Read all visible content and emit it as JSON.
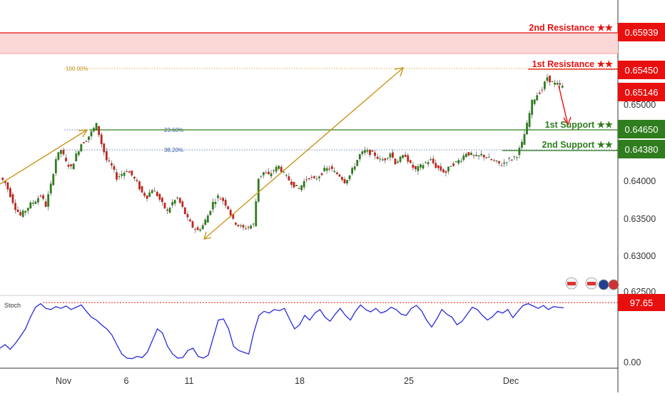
{
  "chart_data": {
    "type": "candlestick",
    "symbol_hint": "",
    "price_axis": {
      "min": 0.6245,
      "max": 0.6628,
      "ticks": [
        "0.65000",
        "0.64000",
        "0.63500",
        "0.63000",
        "0.62500"
      ]
    },
    "time_axis": {
      "labels": [
        "Nov",
        "6",
        "11",
        "18",
        "25",
        "Dec"
      ]
    },
    "levels": [
      {
        "name": "2nd Resistance ★★",
        "value": "0.65939",
        "role": "resistance",
        "color": "#e8100f"
      },
      {
        "name": "1st Resistance ★★",
        "value": "0.65450",
        "role": "resistance",
        "color": "#e8100f"
      },
      {
        "name": "1st Support ★★",
        "value": "0.64650",
        "role": "support",
        "color": "#2f7d1e"
      },
      {
        "name": "2nd Support ★★",
        "value": "0.64380",
        "role": "support",
        "color": "#2f7d1e"
      }
    ],
    "current_price": {
      "value": "0.65146",
      "color": "#e8100f"
    },
    "fibonacci": [
      {
        "label": "100.00%",
        "color": "#c8961e"
      },
      {
        "label": "23.60%",
        "color": "#3a5aa8"
      },
      {
        "label": "38.20%",
        "color": "#3a5aa8"
      }
    ],
    "price_path": [
      [
        0,
        0.6395
      ],
      [
        1,
        0.6388
      ],
      [
        2,
        0.6372
      ],
      [
        3,
        0.6355
      ],
      [
        4,
        0.6345
      ],
      [
        5,
        0.6352
      ],
      [
        6,
        0.636
      ],
      [
        7,
        0.6365
      ],
      [
        8,
        0.6372
      ],
      [
        9,
        0.6358
      ],
      [
        10,
        0.6385
      ],
      [
        11,
        0.642
      ],
      [
        12,
        0.6432
      ],
      [
        13,
        0.6415
      ],
      [
        14,
        0.6408
      ],
      [
        15,
        0.6425
      ],
      [
        16,
        0.644
      ],
      [
        17,
        0.6445
      ],
      [
        18,
        0.6455
      ],
      [
        19,
        0.6465
      ],
      [
        20,
        0.644
      ],
      [
        21,
        0.6418
      ],
      [
        22,
        0.641
      ],
      [
        23,
        0.6395
      ],
      [
        24,
        0.64
      ],
      [
        25,
        0.6405
      ],
      [
        26,
        0.6398
      ],
      [
        27,
        0.6388
      ],
      [
        28,
        0.6375
      ],
      [
        29,
        0.637
      ],
      [
        30,
        0.638
      ],
      [
        31,
        0.6372
      ],
      [
        32,
        0.636
      ],
      [
        33,
        0.635
      ],
      [
        34,
        0.6362
      ],
      [
        35,
        0.6368
      ],
      [
        36,
        0.6355
      ],
      [
        37,
        0.634
      ],
      [
        38,
        0.633
      ],
      [
        39,
        0.6325
      ],
      [
        40,
        0.6332
      ],
      [
        41,
        0.6345
      ],
      [
        42,
        0.6362
      ],
      [
        43,
        0.637
      ],
      [
        44,
        0.6365
      ],
      [
        45,
        0.6355
      ],
      [
        46,
        0.6338
      ],
      [
        47,
        0.6332
      ],
      [
        48,
        0.6328
      ],
      [
        49,
        0.633
      ],
      [
        50,
        0.6333
      ],
      [
        51,
        0.6395
      ],
      [
        52,
        0.6402
      ],
      [
        53,
        0.6398
      ],
      [
        54,
        0.6405
      ],
      [
        55,
        0.641
      ],
      [
        56,
        0.64
      ],
      [
        57,
        0.6392
      ],
      [
        58,
        0.6385
      ],
      [
        59,
        0.638
      ],
      [
        60,
        0.639
      ],
      [
        61,
        0.6396
      ],
      [
        62,
        0.6392
      ],
      [
        63,
        0.6398
      ],
      [
        64,
        0.6405
      ],
      [
        65,
        0.6408
      ],
      [
        66,
        0.6402
      ],
      [
        67,
        0.6398
      ],
      [
        68,
        0.639
      ],
      [
        69,
        0.6398
      ],
      [
        70,
        0.6412
      ],
      [
        71,
        0.6425
      ],
      [
        72,
        0.643
      ],
      [
        73,
        0.6428
      ],
      [
        74,
        0.6425
      ],
      [
        75,
        0.6418
      ],
      [
        76,
        0.642
      ],
      [
        77,
        0.6428
      ],
      [
        78,
        0.6415
      ],
      [
        79,
        0.642
      ],
      [
        80,
        0.6425
      ],
      [
        81,
        0.6412
      ],
      [
        82,
        0.6405
      ],
      [
        83,
        0.641
      ],
      [
        84,
        0.6415
      ],
      [
        85,
        0.6418
      ],
      [
        86,
        0.641
      ],
      [
        87,
        0.6405
      ],
      [
        88,
        0.6402
      ],
      [
        89,
        0.6412
      ],
      [
        90,
        0.6415
      ],
      [
        91,
        0.642
      ],
      [
        92,
        0.6428
      ],
      [
        93,
        0.6425
      ],
      [
        94,
        0.6422
      ],
      [
        95,
        0.6425
      ],
      [
        96,
        0.6422
      ],
      [
        97,
        0.6418
      ],
      [
        98,
        0.6415
      ],
      [
        99,
        0.6412
      ],
      [
        100,
        0.6418
      ],
      [
        101,
        0.642
      ],
      [
        102,
        0.6425
      ],
      [
        103,
        0.644
      ],
      [
        104,
        0.6465
      ],
      [
        105,
        0.6495
      ],
      [
        106,
        0.6505
      ],
      [
        107,
        0.6512
      ],
      [
        108,
        0.6528
      ],
      [
        109,
        0.652
      ],
      [
        110,
        0.6518
      ],
      [
        111,
        0.6515
      ]
    ],
    "stochastic": {
      "label": "Stoch",
      "marker": {
        "value": "97.65",
        "color": "#e8100f"
      },
      "ticks": [
        "0.00"
      ],
      "values": [
        22,
        28,
        20,
        30,
        42,
        55,
        75,
        92,
        98,
        90,
        88,
        93,
        90,
        94,
        88,
        92,
        96,
        85,
        75,
        70,
        62,
        55,
        45,
        28,
        12,
        5,
        4,
        8,
        6,
        15,
        35,
        55,
        48,
        25,
        12,
        5,
        6,
        18,
        22,
        8,
        5,
        10,
        40,
        70,
        72,
        55,
        25,
        18,
        15,
        12,
        50,
        78,
        85,
        82,
        88,
        86,
        90,
        72,
        55,
        62,
        78,
        70,
        82,
        88,
        75,
        68,
        80,
        90,
        78,
        70,
        85,
        96,
        88,
        84,
        90,
        82,
        85,
        92,
        88,
        80,
        78,
        90,
        95,
        86,
        70,
        58,
        72,
        88,
        80,
        75,
        62,
        68,
        80,
        92,
        88,
        78,
        70,
        76,
        85,
        82,
        88,
        74,
        85,
        95,
        98,
        94,
        90,
        95,
        88,
        93,
        92,
        91
      ]
    }
  }
}
